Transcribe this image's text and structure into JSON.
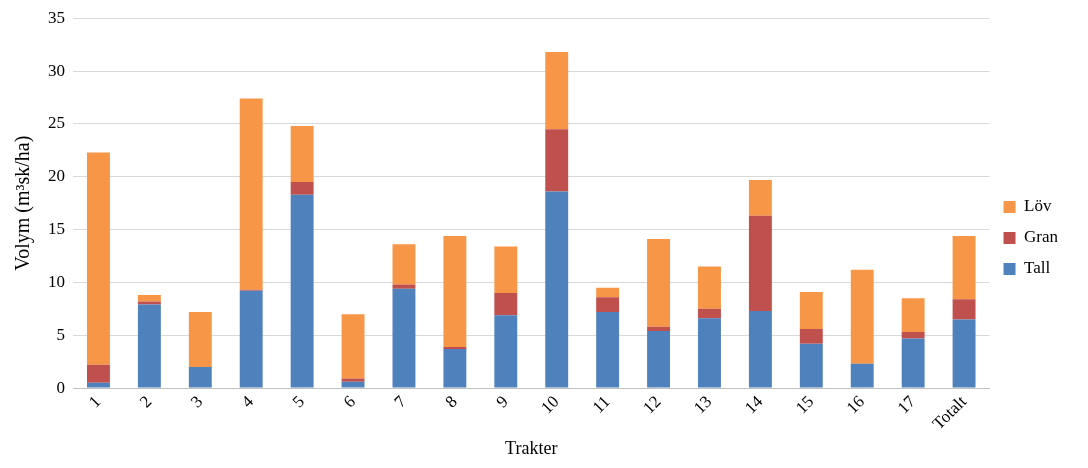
{
  "chart_data": {
    "type": "bar",
    "stacked": true,
    "x_label": "Trakter",
    "y_label": "Volym (m³sk/ha)",
    "categories": [
      "1",
      "2",
      "3",
      "4",
      "5",
      "6",
      "7",
      "8",
      "9",
      "10",
      "11",
      "12",
      "13",
      "14",
      "15",
      "16",
      "17",
      "Totalt"
    ],
    "series": [
      {
        "name": "Tall",
        "color": "#4f81bd",
        "values": [
          0.5,
          7.9,
          2.0,
          9.2,
          18.3,
          0.6,
          9.4,
          3.7,
          6.9,
          18.6,
          7.2,
          5.4,
          6.6,
          7.3,
          4.2,
          2.3,
          4.7,
          6.5
        ]
      },
      {
        "name": "Gran",
        "color": "#c0504d",
        "values": [
          1.7,
          0.3,
          0.0,
          0.1,
          1.2,
          0.3,
          0.4,
          0.2,
          2.1,
          5.9,
          1.4,
          0.4,
          0.9,
          9.0,
          1.4,
          0.0,
          0.6,
          1.9
        ]
      },
      {
        "name": "Löv",
        "color": "#f79646",
        "values": [
          20.1,
          0.6,
          5.2,
          18.1,
          5.3,
          6.1,
          3.8,
          10.5,
          4.4,
          7.3,
          0.9,
          8.3,
          4.0,
          3.4,
          3.5,
          8.9,
          3.2,
          6.0
        ]
      }
    ],
    "ylim": [
      0,
      35
    ],
    "yticks": [
      0,
      5,
      10,
      15,
      20,
      25,
      30,
      35
    ],
    "grid": true,
    "legend": "right"
  }
}
